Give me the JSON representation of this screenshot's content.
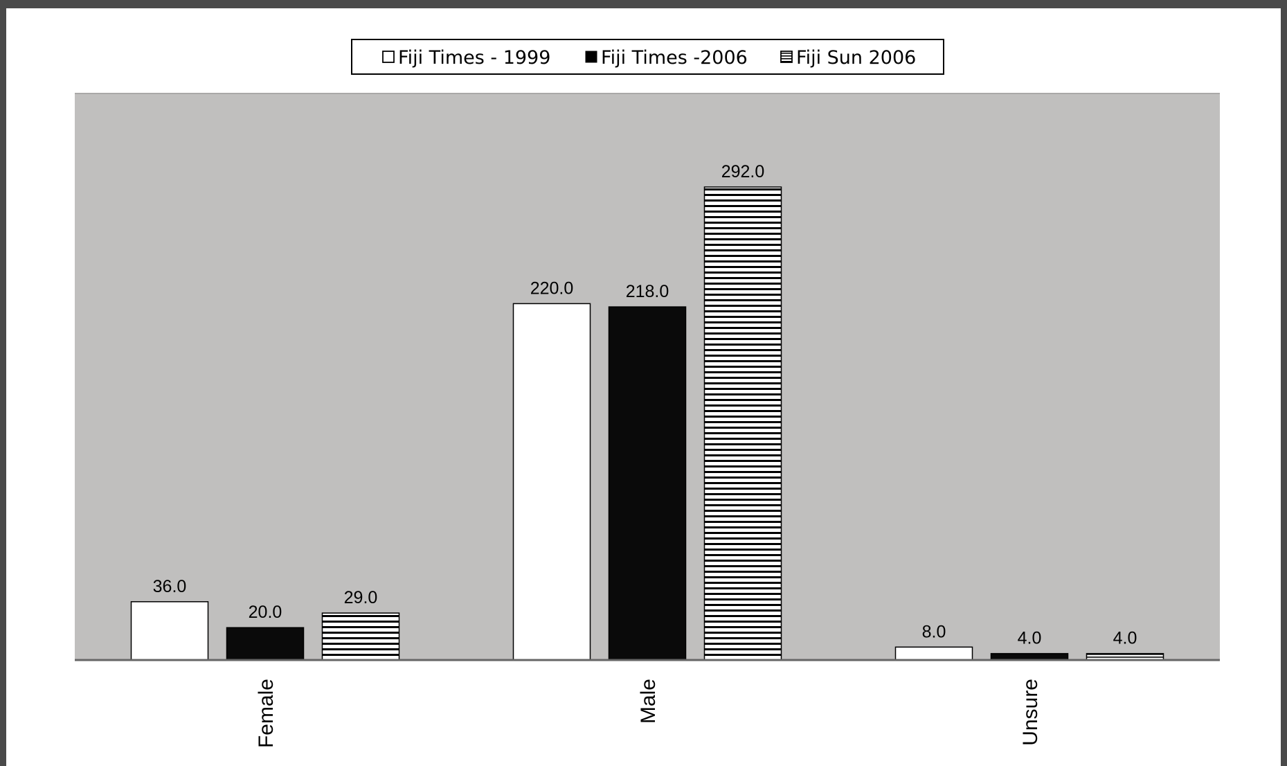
{
  "chart_data": {
    "type": "bar",
    "categories": [
      "Female",
      "Male",
      "Unsure"
    ],
    "series": [
      {
        "name": "Fiji Times - 1999",
        "values": [
          36.0,
          220.0,
          8.0
        ],
        "labels": [
          "36.0",
          "220.0",
          "8.0"
        ],
        "fill": "white"
      },
      {
        "name": "Fiji Times -2006",
        "values": [
          20.0,
          218.0,
          4.0
        ],
        "labels": [
          "20.0",
          "218.0",
          "4.0"
        ],
        "fill": "black"
      },
      {
        "name": "Fiji Sun 2006",
        "values": [
          29.0,
          292.0,
          4.0
        ],
        "labels": [
          "29.0",
          "292.0",
          "4.0"
        ],
        "fill": "horizontal-stripes"
      }
    ],
    "ylim": [
      0,
      350
    ],
    "y_axis_visible": false,
    "grid": false,
    "legend_position": "top-center",
    "plot_background": "#c0bfbe",
    "colors": {
      "white_bar": "#ffffff",
      "black_bar": "#0a0a0a",
      "stripe": "#000000",
      "frame": "#4a4a4a"
    }
  }
}
